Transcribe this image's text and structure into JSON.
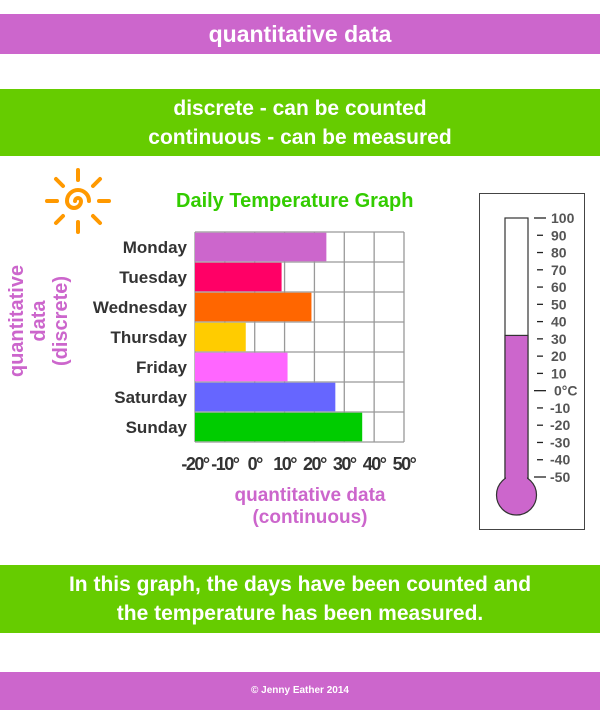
{
  "header": {
    "title": "quantitative data"
  },
  "definitions": {
    "line1": "discrete - can be counted",
    "line2": "continuous - can be measured"
  },
  "chart_data": {
    "type": "bar",
    "orientation": "horizontal",
    "title": "Daily Temperature Graph",
    "ylabel": "quantitative data (discrete)",
    "ylabel_lines": [
      "quantitative data",
      "(discrete)"
    ],
    "xlabel_lines": [
      "quantitative data",
      "(continuous)"
    ],
    "categories": [
      "Monday",
      "Tuesday",
      "Wednesday",
      "Thursday",
      "Friday",
      "Saturday",
      "Sunday"
    ],
    "values": [
      24,
      9,
      19,
      -3,
      11,
      27,
      36
    ],
    "colors": [
      "#cc66cc",
      "#ff0066",
      "#ff6600",
      "#ffcc00",
      "#ff66ff",
      "#6666ff",
      "#00cc00"
    ],
    "xlim": [
      -20,
      50
    ],
    "xticks": [
      -20,
      -10,
      0,
      10,
      20,
      30,
      40,
      50
    ],
    "xtick_labels": [
      "-20°",
      "-10°",
      "0°",
      "10°",
      "20°",
      "30°",
      "40°",
      "50°"
    ],
    "grid": true
  },
  "thermometer": {
    "value": 32,
    "min": -50,
    "max": 100,
    "unit_label": "0°C",
    "fill_color": "#cc66cc",
    "labels": [
      "100",
      "90",
      "80",
      "70",
      "60",
      "50",
      "40",
      "30",
      "20",
      "10",
      "0°C",
      "-10",
      "-20",
      "-30",
      "-40",
      "-50"
    ]
  },
  "summary": {
    "line1": "In this graph, the days have been counted and",
    "line2": "the temperature has been measured."
  },
  "footer": {
    "credit": "© Jenny Eather 2014"
  }
}
